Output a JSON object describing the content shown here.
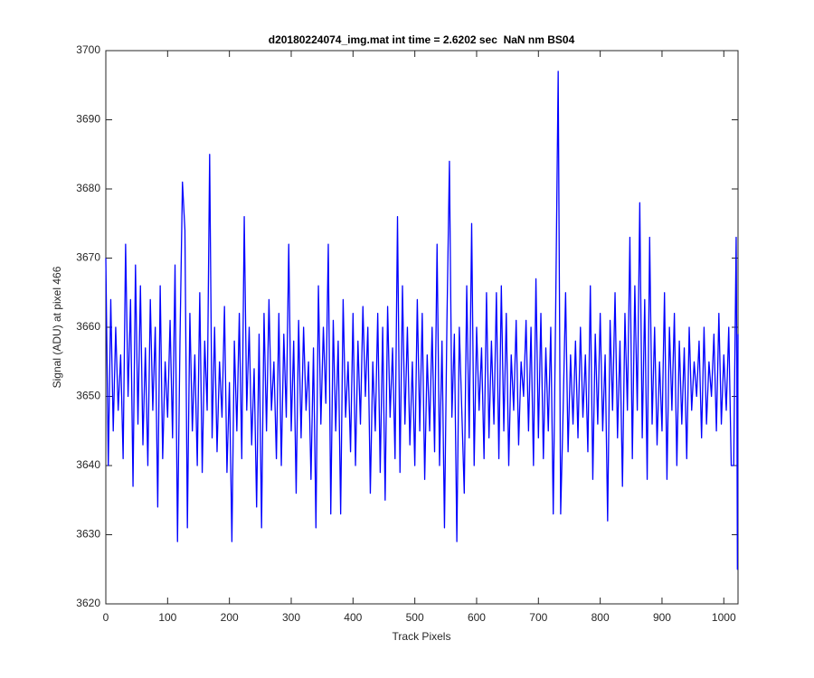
{
  "chart_data": {
    "type": "line",
    "title": "d20180224074_img.mat int time = 2.6202 sec  NaN nm BS04",
    "x_label": "Track Pixels",
    "y_label": "Signal (ADU) at pixel 466",
    "xlim": [
      0,
      1023
    ],
    "ylim": [
      3620,
      3700
    ],
    "xticks": [
      0,
      100,
      200,
      300,
      400,
      500,
      600,
      700,
      800,
      900,
      1000
    ],
    "yticks": [
      3620,
      3630,
      3640,
      3650,
      3660,
      3670,
      3680,
      3690,
      3700
    ],
    "grid": false,
    "x": [
      0,
      4,
      8,
      12,
      16,
      20,
      24,
      28,
      32,
      36,
      40,
      44,
      48,
      52,
      56,
      60,
      64,
      68,
      72,
      76,
      80,
      84,
      88,
      92,
      96,
      100,
      104,
      108,
      112,
      116,
      120,
      124,
      128,
      132,
      136,
      140,
      144,
      148,
      152,
      156,
      160,
      164,
      168,
      172,
      176,
      180,
      184,
      188,
      192,
      196,
      200,
      204,
      208,
      212,
      216,
      220,
      224,
      228,
      232,
      236,
      240,
      244,
      248,
      252,
      256,
      260,
      264,
      268,
      272,
      276,
      280,
      284,
      288,
      292,
      296,
      300,
      304,
      308,
      312,
      316,
      320,
      324,
      328,
      332,
      336,
      340,
      344,
      348,
      352,
      356,
      360,
      364,
      368,
      372,
      376,
      380,
      384,
      388,
      392,
      396,
      400,
      404,
      408,
      412,
      416,
      420,
      424,
      428,
      432,
      436,
      440,
      444,
      448,
      452,
      456,
      460,
      464,
      468,
      472,
      476,
      480,
      484,
      488,
      492,
      496,
      500,
      504,
      508,
      512,
      516,
      520,
      524,
      528,
      532,
      536,
      540,
      544,
      548,
      552,
      556,
      560,
      564,
      568,
      572,
      576,
      580,
      584,
      588,
      592,
      596,
      600,
      604,
      608,
      612,
      616,
      620,
      624,
      628,
      632,
      636,
      640,
      644,
      648,
      652,
      656,
      660,
      664,
      668,
      672,
      676,
      680,
      684,
      688,
      692,
      696,
      700,
      704,
      708,
      712,
      716,
      720,
      724,
      728,
      732,
      736,
      740,
      744,
      748,
      752,
      756,
      760,
      764,
      768,
      772,
      776,
      780,
      784,
      788,
      792,
      796,
      800,
      804,
      808,
      812,
      816,
      820,
      824,
      828,
      832,
      836,
      840,
      844,
      848,
      852,
      856,
      860,
      864,
      868,
      872,
      876,
      880,
      884,
      888,
      892,
      896,
      900,
      904,
      908,
      912,
      916,
      920,
      924,
      928,
      932,
      936,
      940,
      944,
      948,
      952,
      956,
      960,
      964,
      968,
      972,
      976,
      980,
      984,
      988,
      992,
      996,
      1000,
      1004,
      1008,
      1012,
      1016,
      1020,
      1021,
      1022,
      1023
    ],
    "series": [
      {
        "name": "Signal",
        "color": "#0000ff",
        "values": [
          3670,
          3640,
          3664,
          3645,
          3660,
          3648,
          3656,
          3641,
          3672,
          3650,
          3664,
          3637,
          3669,
          3646,
          3666,
          3643,
          3657,
          3640,
          3664,
          3648,
          3660,
          3634,
          3666,
          3641,
          3655,
          3647,
          3661,
          3644,
          3669,
          3629,
          3658,
          3681,
          3674,
          3631,
          3662,
          3645,
          3656,
          3640,
          3665,
          3639,
          3658,
          3648,
          3685,
          3644,
          3660,
          3642,
          3655,
          3647,
          3663,
          3639,
          3652,
          3629,
          3658,
          3645,
          3662,
          3641,
          3676,
          3648,
          3660,
          3643,
          3654,
          3634,
          3659,
          3631,
          3662,
          3645,
          3664,
          3648,
          3655,
          3641,
          3662,
          3640,
          3659,
          3647,
          3672,
          3645,
          3658,
          3636,
          3661,
          3644,
          3660,
          3648,
          3655,
          3638,
          3657,
          3631,
          3666,
          3646,
          3660,
          3649,
          3672,
          3633,
          3661,
          3645,
          3658,
          3633,
          3664,
          3647,
          3655,
          3642,
          3662,
          3640,
          3658,
          3646,
          3663,
          3650,
          3660,
          3636,
          3655,
          3645,
          3662,
          3639,
          3660,
          3635,
          3663,
          3647,
          3657,
          3641,
          3676,
          3639,
          3666,
          3646,
          3660,
          3643,
          3655,
          3640,
          3664,
          3645,
          3662,
          3638,
          3656,
          3645,
          3660,
          3642,
          3672,
          3640,
          3658,
          3631,
          3661,
          3684,
          3647,
          3659,
          3629,
          3660,
          3648,
          3636,
          3666,
          3644,
          3675,
          3640,
          3660,
          3648,
          3657,
          3641,
          3665,
          3644,
          3658,
          3646,
          3665,
          3641,
          3666,
          3645,
          3662,
          3640,
          3656,
          3648,
          3661,
          3643,
          3655,
          3650,
          3661,
          3645,
          3660,
          3640,
          3667,
          3644,
          3662,
          3641,
          3657,
          3645,
          3660,
          3633,
          3663,
          3697,
          3633,
          3648,
          3665,
          3642,
          3656,
          3646,
          3658,
          3644,
          3660,
          3647,
          3656,
          3642,
          3666,
          3638,
          3659,
          3646,
          3662,
          3645,
          3656,
          3632,
          3661,
          3648,
          3665,
          3644,
          3658,
          3637,
          3662,
          3648,
          3673,
          3641,
          3666,
          3648,
          3678,
          3644,
          3664,
          3638,
          3673,
          3646,
          3660,
          3643,
          3655,
          3645,
          3665,
          3638,
          3660,
          3648,
          3662,
          3640,
          3658,
          3646,
          3657,
          3641,
          3660,
          3648,
          3655,
          3650,
          3658,
          3644,
          3660,
          3646,
          3655,
          3650,
          3659,
          3645,
          3662,
          3646,
          3656,
          3648,
          3660,
          3640,
          3640,
          3673,
          3655,
          3625,
          3659
        ]
      }
    ]
  }
}
